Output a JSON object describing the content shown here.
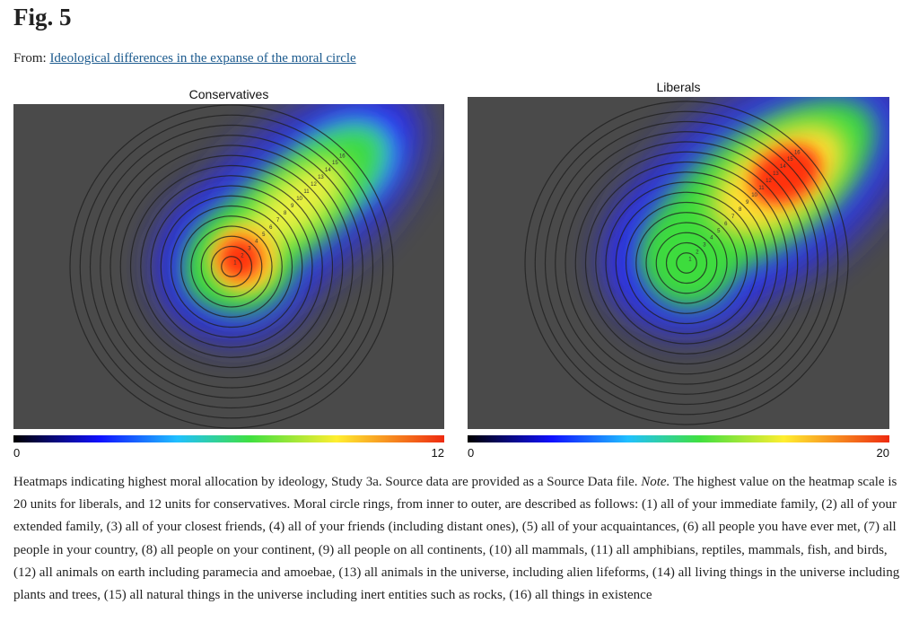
{
  "header": {
    "title": "Fig. 5",
    "from_label": "From:",
    "from_link": "Ideological differences in the expanse of the moral circle"
  },
  "panels": [
    {
      "title": "Conservatives",
      "scale_min": 0,
      "scale_max": 12,
      "ring_labels": [
        "1",
        "2",
        "3",
        "4",
        "5",
        "6",
        "7",
        "8",
        "9",
        "10",
        "11",
        "12",
        "13",
        "14",
        "15",
        "16"
      ]
    },
    {
      "title": "Liberals",
      "scale_min": 0,
      "scale_max": 20,
      "ring_labels": [
        "1",
        "2",
        "3",
        "4",
        "5",
        "6",
        "7",
        "8",
        "9",
        "10",
        "11",
        "12",
        "13",
        "14",
        "15",
        "16"
      ]
    }
  ],
  "caption": {
    "text_1": "Heatmaps indicating highest moral allocation by ideology, Study 3a. Source data are provided as a Source Data file. ",
    "note": "Note.",
    "text_2": " The highest value on the heatmap scale is 20 units for liberals, and 12 units for conservatives. Moral circle rings, from inner to outer, are described as follows: (1) all of your immediate family, (2) all of your extended family, (3) all of your closest friends, (4) all of your friends (including distant ones), (5) all of your acquaintances, (6) all people you have ever met, (7) all people in your country, (8) all people on your continent, (9) all people on all continents, (10) all mammals, (11) all amphibians, reptiles, mammals, fish, and birds, (12) all animals on earth including paramecia and amoebae, (13) all animals in the universe, including alien lifeforms, (14) all living things in the universe including plants and trees, (15) all natural things in the universe including inert entities such as rocks, (16) all things in existence"
  }
}
